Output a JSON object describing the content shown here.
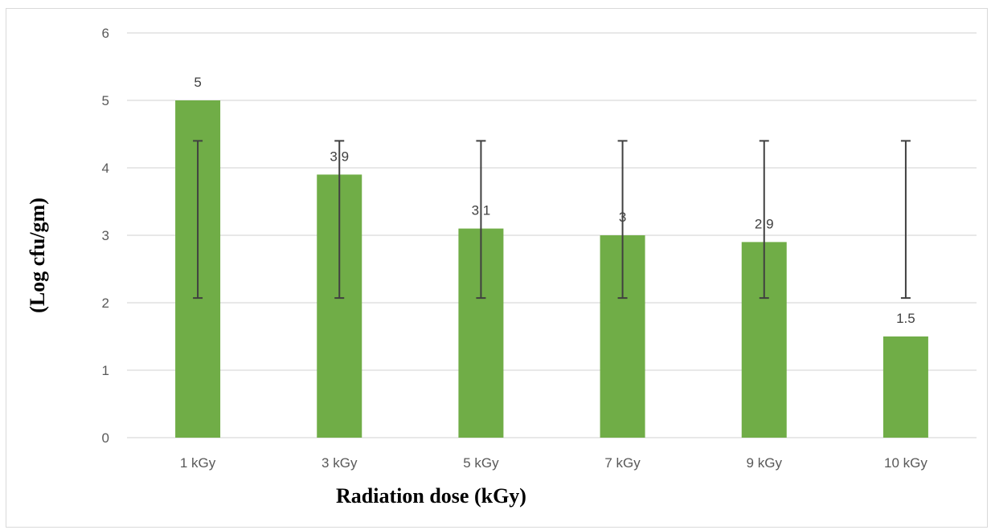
{
  "chart_data": {
    "type": "bar",
    "title": "",
    "xlabel": "Radiation dose (kGy)",
    "ylabel": "(Log cfu/gm)",
    "categories": [
      "1 kGy",
      "3 kGy",
      "5 kGy",
      "7 kGy",
      "9 kGy",
      "10 kGy"
    ],
    "series": [
      {
        "values": [
          5,
          3.9,
          3.1,
          3,
          2.9,
          1.5
        ],
        "data_labels": [
          "5",
          "3.9",
          "3.1",
          "3",
          "2.9",
          "1.5"
        ],
        "color": "#70ad47",
        "error_bars": [
          {
            "low": 2.07,
            "high": 4.4
          },
          {
            "low": 2.07,
            "high": 4.4
          },
          {
            "low": 2.07,
            "high": 4.4
          },
          {
            "low": 2.07,
            "high": 4.4
          },
          {
            "low": 2.07,
            "high": 4.4
          },
          {
            "low": 2.07,
            "high": 4.4
          }
        ]
      }
    ],
    "ylim": [
      0,
      6
    ],
    "yticks": [
      "0",
      "1",
      "2",
      "3",
      "4",
      "5",
      "6"
    ],
    "grid": true,
    "legend": "none",
    "colors": {
      "bar": "#70ad47",
      "gridline": "#d9d9d9",
      "error_bar": "#404040",
      "tick_text": "#595959"
    }
  }
}
